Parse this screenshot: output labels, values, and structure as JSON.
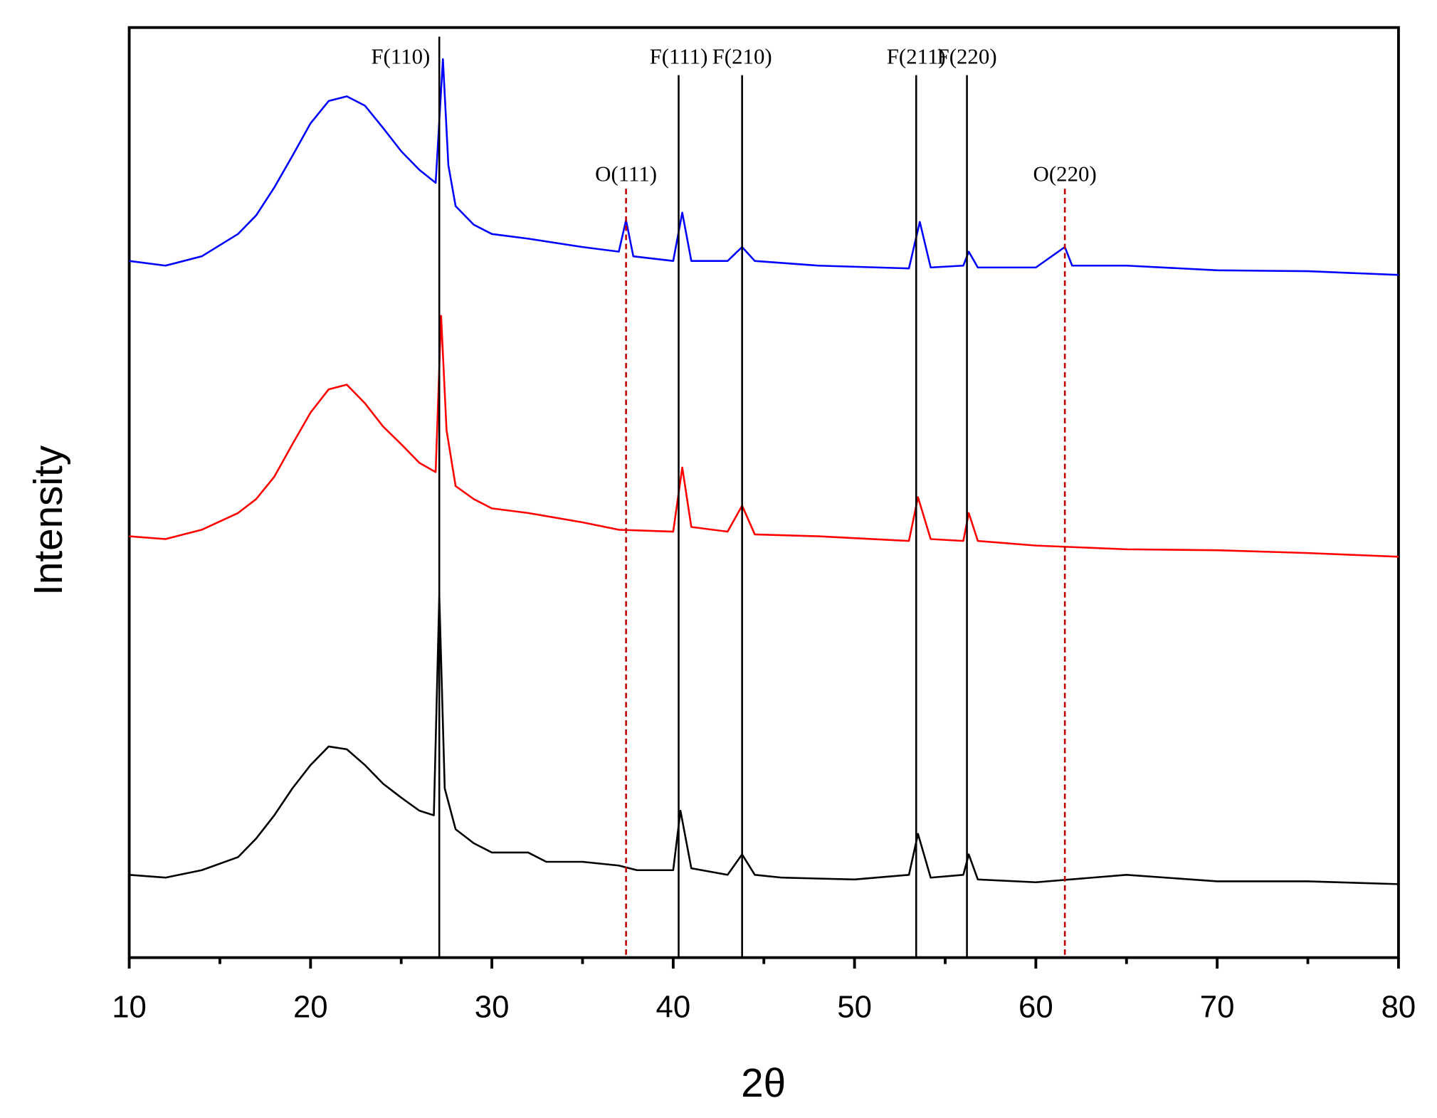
{
  "chart_data": {
    "type": "line",
    "x_label": "2θ",
    "y_label": "Intensity",
    "xlim": [
      10,
      80
    ],
    "ylim": [
      0,
      100
    ],
    "xticks": [
      10,
      20,
      30,
      40,
      50,
      60,
      70,
      80
    ],
    "xminorticks": [
      15,
      25,
      35,
      45,
      55,
      65,
      75
    ],
    "series": [
      {
        "color": "#000000",
        "x": [
          10,
          12,
          14,
          16,
          17,
          18,
          19,
          20,
          21,
          22,
          23,
          24,
          25,
          26,
          26.8,
          27.1,
          27.4,
          28,
          29,
          30,
          32,
          33,
          35,
          37,
          38,
          40,
          40.4,
          41,
          43,
          43.8,
          44.5,
          46,
          50,
          53,
          53.5,
          54.2,
          56,
          56.3,
          56.8,
          60,
          65,
          70,
          75,
          80
        ],
        "values": [
          8.9,
          8.6,
          9.4,
          10.8,
          12.8,
          15.3,
          18.2,
          20.7,
          22.7,
          22.4,
          20.7,
          18.7,
          17.2,
          15.8,
          15.3,
          38.9,
          18.2,
          13.8,
          12.3,
          11.3,
          11.3,
          10.3,
          10.3,
          9.9,
          9.4,
          9.4,
          15.8,
          9.6,
          8.9,
          11.1,
          8.9,
          8.6,
          8.4,
          8.9,
          13.3,
          8.6,
          8.9,
          11.1,
          8.4,
          8.1,
          8.9,
          8.2,
          8.2,
          7.9
        ]
      },
      {
        "color": "#ff0000",
        "x": [
          10,
          12,
          14,
          16,
          17,
          18,
          19,
          20,
          21,
          22,
          23,
          24,
          25,
          26,
          26.9,
          27.2,
          27.5,
          28,
          29,
          30,
          32,
          35,
          37,
          40,
          40.5,
          41,
          43,
          43.8,
          44.5,
          48,
          53,
          53.5,
          54.2,
          56,
          56.3,
          56.8,
          60,
          65,
          70,
          75,
          80
        ],
        "values": [
          45.3,
          45.0,
          46.0,
          47.8,
          49.3,
          51.7,
          55.2,
          58.6,
          61.1,
          61.6,
          59.6,
          57.1,
          55.2,
          53.2,
          52.2,
          69.0,
          56.7,
          50.7,
          49.3,
          48.3,
          47.8,
          46.8,
          46.0,
          45.8,
          52.7,
          46.3,
          45.8,
          48.6,
          45.5,
          45.3,
          44.8,
          49.5,
          45.0,
          44.8,
          47.8,
          44.8,
          44.3,
          43.9,
          43.8,
          43.5,
          43.1
        ]
      },
      {
        "color": "#0000ff",
        "x": [
          10,
          12,
          14,
          16,
          17,
          18,
          19,
          20,
          21,
          22,
          23,
          24,
          25,
          26,
          26.9,
          27.3,
          27.6,
          28,
          29,
          30,
          32,
          35,
          37,
          37.4,
          37.8,
          40,
          40.5,
          41,
          43,
          43.8,
          44.5,
          48,
          53,
          53.6,
          54.2,
          56,
          56.3,
          56.8,
          60,
          61.6,
          62,
          65,
          70,
          75,
          80
        ],
        "values": [
          74.9,
          74.4,
          75.4,
          77.8,
          79.8,
          82.8,
          86.2,
          89.7,
          92.1,
          92.6,
          91.6,
          89.2,
          86.7,
          84.7,
          83.3,
          96.6,
          85.2,
          80.8,
          78.8,
          77.8,
          77.3,
          76.4,
          75.9,
          79.3,
          75.4,
          74.9,
          80.1,
          74.9,
          74.9,
          76.4,
          74.9,
          74.4,
          74.1,
          79.1,
          74.2,
          74.4,
          75.9,
          74.2,
          74.2,
          76.4,
          74.4,
          74.4,
          73.9,
          73.8,
          73.4
        ]
      }
    ],
    "reference_lines": [
      {
        "label": "F(110)",
        "x": 27.1,
        "color": "#000000",
        "dashed": false
      },
      {
        "label": "F(111)",
        "x": 40.3,
        "color": "#000000",
        "dashed": false
      },
      {
        "label": "F(210)",
        "x": 43.8,
        "color": "#000000",
        "dashed": false
      },
      {
        "label": "F(211)",
        "x": 53.4,
        "color": "#000000",
        "dashed": false
      },
      {
        "label": "F(220)",
        "x": 56.2,
        "color": "#000000",
        "dashed": false
      },
      {
        "label": "O(111)",
        "x": 37.4,
        "color": "#c00000",
        "dashed": true
      },
      {
        "label": "O(220)",
        "x": 61.6,
        "color": "#c00000",
        "dashed": true
      }
    ]
  }
}
